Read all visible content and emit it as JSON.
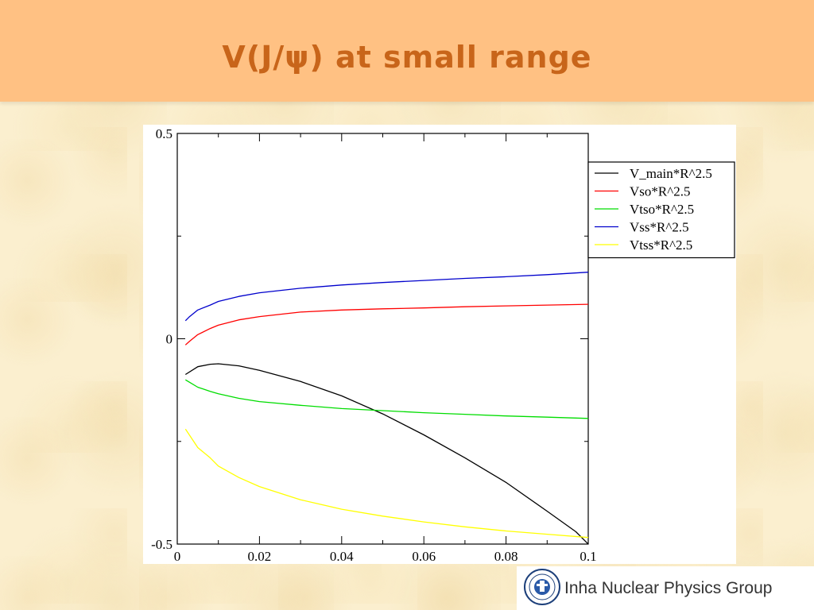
{
  "slide": {
    "title": "V(J/ψ) at small range",
    "footer_text": "Inha Nuclear Physics Group",
    "colors": {
      "header_bg": "#ffc183",
      "title_color": "#c8651a",
      "page_bg": "#fbefcf"
    }
  },
  "logo": {
    "icon": "university-seal-icon"
  },
  "chart_data": {
    "type": "line",
    "title": "",
    "xlabel": "",
    "ylabel": "",
    "xlim": [
      0,
      0.1
    ],
    "ylim": [
      -0.5,
      0.5
    ],
    "x_ticks": [
      "0",
      "0.02",
      "0.04",
      "0.06",
      "0.08",
      "0.1"
    ],
    "y_ticks": [
      "-0.5",
      "0",
      "0.5"
    ],
    "grid": false,
    "legend_position": "top-right outside",
    "series": [
      {
        "name": "V_main*R^2.5",
        "color": "#000000",
        "x": [
          0.002,
          0.005,
          0.008,
          0.01,
          0.015,
          0.02,
          0.03,
          0.04,
          0.05,
          0.06,
          0.07,
          0.08,
          0.09,
          0.097,
          0.1
        ],
        "y": [
          -0.087,
          -0.068,
          -0.062,
          -0.061,
          -0.066,
          -0.077,
          -0.104,
          -0.139,
          -0.183,
          -0.234,
          -0.29,
          -0.35,
          -0.42,
          -0.47,
          -0.5
        ]
      },
      {
        "name": "Vso*R^2.5",
        "color": "#ff0000",
        "x": [
          0.002,
          0.003,
          0.005,
          0.008,
          0.01,
          0.015,
          0.02,
          0.03,
          0.04,
          0.05,
          0.06,
          0.07,
          0.08,
          0.09,
          0.1
        ],
        "y": [
          -0.015,
          -0.006,
          0.01,
          0.025,
          0.033,
          0.046,
          0.054,
          0.065,
          0.07,
          0.073,
          0.075,
          0.078,
          0.08,
          0.082,
          0.084
        ]
      },
      {
        "name": "Vtso*R^2.5",
        "color": "#00dd00",
        "x": [
          0.002,
          0.003,
          0.005,
          0.008,
          0.01,
          0.015,
          0.02,
          0.03,
          0.04,
          0.05,
          0.06,
          0.07,
          0.08,
          0.09,
          0.1
        ],
        "y": [
          -0.1,
          -0.106,
          -0.118,
          -0.128,
          -0.134,
          -0.145,
          -0.153,
          -0.162,
          -0.17,
          -0.175,
          -0.18,
          -0.184,
          -0.188,
          -0.191,
          -0.194
        ]
      },
      {
        "name": "Vss*R^2.5",
        "color": "#0000cc",
        "x": [
          0.002,
          0.003,
          0.005,
          0.008,
          0.01,
          0.015,
          0.02,
          0.03,
          0.04,
          0.05,
          0.06,
          0.07,
          0.08,
          0.09,
          0.1
        ],
        "y": [
          0.044,
          0.054,
          0.07,
          0.082,
          0.091,
          0.103,
          0.112,
          0.123,
          0.131,
          0.137,
          0.142,
          0.147,
          0.151,
          0.156,
          0.162
        ]
      },
      {
        "name": "Vtss*R^2.5",
        "color": "#ffff00",
        "x": [
          0.002,
          0.003,
          0.005,
          0.008,
          0.01,
          0.015,
          0.02,
          0.03,
          0.04,
          0.05,
          0.06,
          0.07,
          0.08,
          0.09,
          0.1
        ],
        "y": [
          -0.22,
          -0.235,
          -0.265,
          -0.29,
          -0.31,
          -0.338,
          -0.36,
          -0.392,
          -0.415,
          -0.432,
          -0.446,
          -0.458,
          -0.468,
          -0.476,
          -0.484
        ]
      }
    ]
  }
}
